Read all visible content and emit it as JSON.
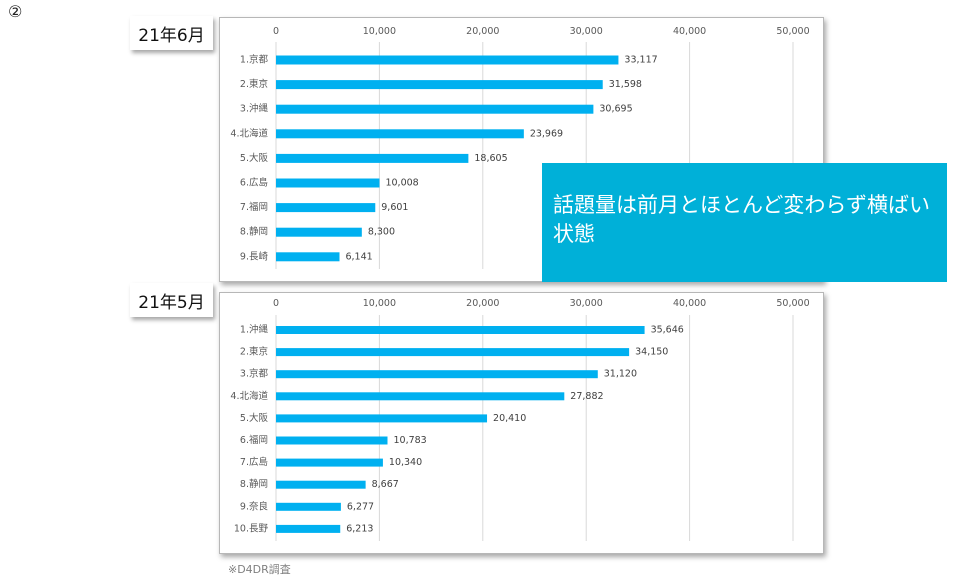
{
  "marker": "②",
  "callout_text": "話題量は前月とほとんど変わらず横ばい状態",
  "source_note": "※D4DR調査",
  "colors": {
    "bar": "#00b0f0",
    "callout": "#00b0d8"
  },
  "chart_data": [
    {
      "type": "bar",
      "orientation": "horizontal",
      "title": "21年6月",
      "categories": [
        "1.京都",
        "2.東京",
        "3.沖縄",
        "4.北海道",
        "5.大阪",
        "6.広島",
        "7.福岡",
        "8.静岡",
        "9.長崎"
      ],
      "values": [
        33117,
        31598,
        30695,
        23969,
        18605,
        10008,
        9601,
        8300,
        6141
      ],
      "value_labels": [
        "33,117",
        "31,598",
        "30,695",
        "23,969",
        "18,605",
        "10,008",
        "9,601",
        "8,300",
        "6,141"
      ],
      "xlim": [
        0,
        50000
      ],
      "ticks": [
        0,
        10000,
        20000,
        30000,
        40000,
        50000
      ],
      "tick_labels": [
        "0",
        "10,000",
        "20,000",
        "30,000",
        "40,000",
        "50,000"
      ],
      "axis_position": "top",
      "grid": true
    },
    {
      "type": "bar",
      "orientation": "horizontal",
      "title": "21年5月",
      "categories": [
        "1.沖縄",
        "2.東京",
        "3.京都",
        "4.北海道",
        "5.大阪",
        "6.福岡",
        "7.広島",
        "8.静岡",
        "9.奈良",
        "10.長野"
      ],
      "values": [
        35646,
        34150,
        31120,
        27882,
        20410,
        10783,
        10340,
        8667,
        6277,
        6213
      ],
      "value_labels": [
        "35,646",
        "34,150",
        "31,120",
        "27,882",
        "20,410",
        "10,783",
        "10,340",
        "8,667",
        "6,277",
        "6,213"
      ],
      "xlim": [
        0,
        50000
      ],
      "ticks": [
        0,
        10000,
        20000,
        30000,
        40000,
        50000
      ],
      "tick_labels": [
        "0",
        "10,000",
        "20,000",
        "30,000",
        "40,000",
        "50,000"
      ],
      "axis_position": "top",
      "grid": true
    }
  ]
}
